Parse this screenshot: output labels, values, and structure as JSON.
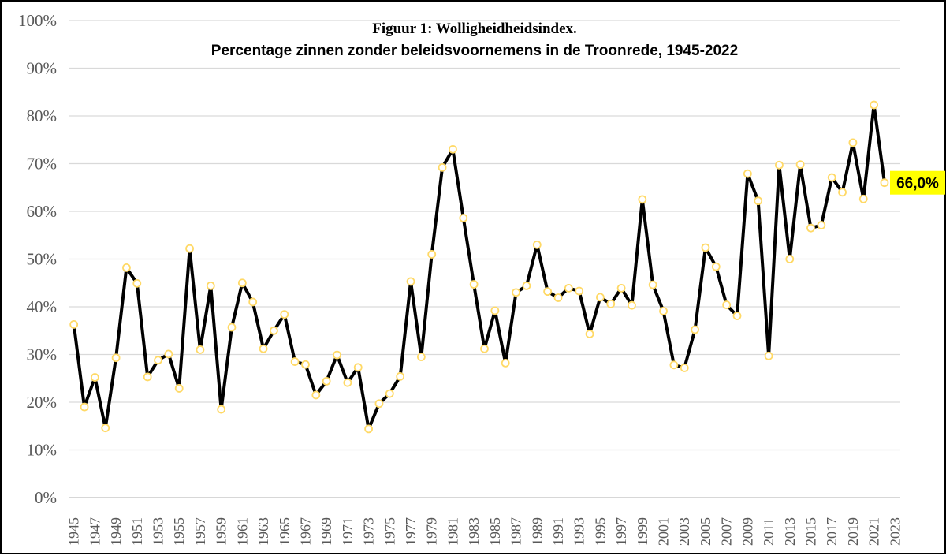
{
  "chart_data": {
    "type": "line",
    "title": "Figuur 1: Wolligheidheidsindex.",
    "subtitle": "Percentage zinnen zonder beleidsvoornemens in de Troonrede, 1945-2022",
    "xlabel": "",
    "ylabel": "",
    "ylim": [
      0,
      100
    ],
    "y_ticks": [
      "0%",
      "10%",
      "20%",
      "30%",
      "40%",
      "50%",
      "60%",
      "70%",
      "80%",
      "90%",
      "100%"
    ],
    "x_ticks": [
      "1945",
      "1947",
      "1949",
      "1951",
      "1953",
      "1955",
      "1957",
      "1959",
      "1961",
      "1963",
      "1965",
      "1967",
      "1969",
      "1971",
      "1973",
      "1975",
      "1977",
      "1979",
      "1981",
      "1983",
      "1985",
      "1987",
      "1989",
      "1991",
      "1993",
      "1995",
      "1997",
      "1999",
      "2001",
      "2003",
      "2005",
      "2007",
      "2009",
      "2011",
      "2013",
      "2015",
      "2017",
      "2019",
      "2021",
      "2023"
    ],
    "grid": true,
    "legend": "none",
    "line_color": "#000000",
    "marker_color": "#FFD966",
    "last_label": "66,0%",
    "last_label_bg": "#FFFF00",
    "series": [
      {
        "x": [
          1945,
          1946,
          1947,
          1948,
          1949,
          1950,
          1951,
          1952,
          1953,
          1954,
          1955,
          1956,
          1957,
          1958,
          1959,
          1960,
          1961,
          1962,
          1963,
          1964,
          1965,
          1966,
          1967,
          1968,
          1969,
          1970,
          1971,
          1972,
          1973,
          1974,
          1975,
          1976,
          1977,
          1978,
          1979,
          1980,
          1981,
          1982,
          1983,
          1984,
          1985,
          1986,
          1987,
          1988,
          1989,
          1990,
          1991,
          1992,
          1993,
          1994,
          1995,
          1996,
          1997,
          1998,
          1999,
          2000,
          2001,
          2002,
          2003,
          2004,
          2005,
          2006,
          2007,
          2008,
          2009,
          2010,
          2011,
          2012,
          2013,
          2014,
          2015,
          2016,
          2017,
          2018,
          2019,
          2020,
          2021,
          2022
        ],
        "values": [
          36.3,
          19.0,
          25.2,
          14.6,
          29.3,
          48.2,
          44.9,
          25.3,
          28.8,
          30.1,
          22.9,
          52.2,
          31.0,
          44.4,
          18.5,
          35.7,
          45.0,
          41.0,
          31.2,
          35.0,
          38.4,
          28.5,
          27.9,
          21.5,
          24.4,
          29.9,
          24.1,
          27.3,
          14.4,
          19.7,
          21.8,
          25.4,
          45.3,
          29.5,
          51.0,
          69.2,
          73.0,
          58.6,
          44.7,
          31.2,
          39.2,
          28.2,
          43.0,
          44.4,
          53.0,
          43.2,
          41.9,
          43.9,
          43.3,
          34.3,
          42.0,
          40.6,
          43.9,
          40.3,
          62.5,
          44.6,
          39.1,
          27.8,
          27.2,
          35.2,
          52.4,
          48.4,
          40.4,
          38.1,
          67.9,
          62.2,
          29.7,
          69.7,
          50.0,
          69.8,
          56.5,
          57.1,
          67.1,
          64.0,
          74.4,
          62.6,
          82.3,
          66.0
        ]
      }
    ]
  }
}
